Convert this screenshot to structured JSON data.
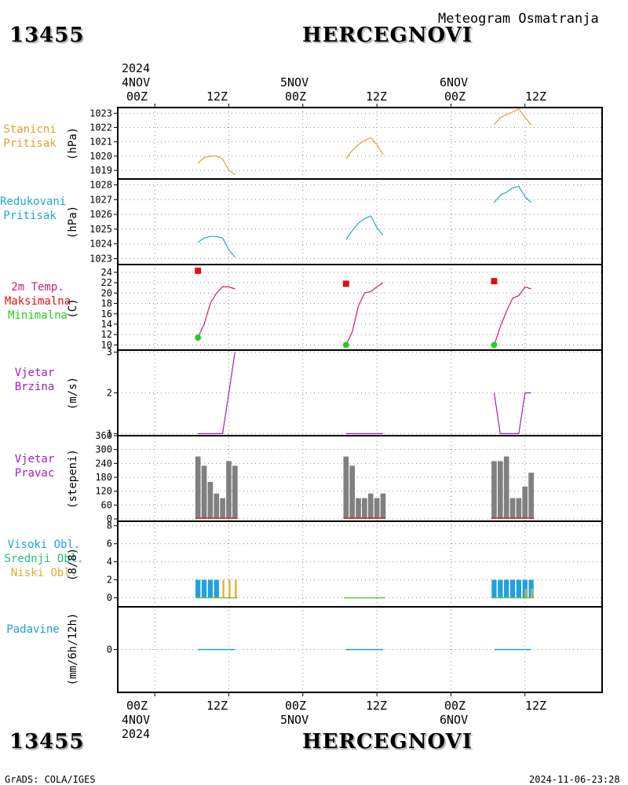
{
  "header": {
    "station_id": "13455",
    "station_name": "HERCEGNOVI",
    "subtitle": "Meteogram Osmatranja"
  },
  "footer": {
    "credit": "GrADS: COLA/IGES",
    "timestamp": "2024-11-06-23:28"
  },
  "time_axis": {
    "top_year": "2024",
    "bottom_year": "2024",
    "day_labels": [
      "4NOV",
      "5NOV",
      "6NOV"
    ],
    "tick_labels": [
      "00Z",
      "12Z",
      "00Z",
      "12Z",
      "00Z",
      "12Z"
    ]
  },
  "colors": {
    "station_pressure": "#e0a030",
    "reduced_pressure": "#20a8d0",
    "temp": "#c81e78",
    "max": "#e01010",
    "min": "#20d020",
    "wind": "#a020c0",
    "bar": "#808080",
    "high_cloud": "#20a0e0",
    "mid_cloud": "#20c080",
    "low_cloud": "#e0b030",
    "precip": "#20a0c8"
  },
  "panels": {
    "station_pressure": {
      "label_lines": [
        "Stanicni",
        "Pritisak"
      ],
      "unit": "(hPa)"
    },
    "reduced_pressure": {
      "label_lines": [
        "Redukovani",
        "Pritisak"
      ],
      "unit": "(hPa)"
    },
    "temperature": {
      "label_lines": [
        "2m Temp.",
        "Maksimalna",
        "Minimalna"
      ],
      "unit": "(C)"
    },
    "wind_speed": {
      "label_lines": [
        "Vjetar",
        "Brzina"
      ],
      "unit": "(m/s)"
    },
    "wind_dir": {
      "label_lines": [
        "Vjetar",
        "Pravac"
      ],
      "unit": "(stepeni)"
    },
    "clouds": {
      "label_lines": [
        "Visoki Obl.",
        "Srednji Obl.",
        "Niski Obl."
      ],
      "unit": "(8/8)"
    },
    "precip": {
      "label_lines": [
        "Padavine"
      ],
      "unit": "(mm/6h/12h)"
    }
  },
  "chart_data": [
    {
      "type": "line",
      "title": "Stanicni Pritisak",
      "ylabel": "(hPa)",
      "ylim": [
        1018.4,
        1023.4
      ],
      "yticks": [
        1019,
        1020,
        1021,
        1022,
        1023
      ],
      "series": [
        {
          "x": [
            7,
            8,
            9,
            10,
            11,
            12,
            13
          ],
          "y": [
            1019.5,
            1019.9,
            1020.0,
            1020.0,
            1019.8,
            1019.0,
            1018.7
          ]
        },
        {
          "x": [
            31,
            32,
            33,
            34,
            35,
            36,
            37
          ],
          "y": [
            1019.8,
            1020.4,
            1020.8,
            1021.1,
            1021.3,
            1020.8,
            1020.1
          ]
        },
        {
          "x": [
            55,
            56,
            57,
            58,
            59,
            60,
            61
          ],
          "y": [
            1022.2,
            1022.7,
            1022.9,
            1023.1,
            1023.3,
            1022.7,
            1022.2
          ]
        }
      ]
    },
    {
      "type": "line",
      "title": "Redukovani Pritisak",
      "ylabel": "(hPa)",
      "ylim": [
        1022.6,
        1028.4
      ],
      "yticks": [
        1023,
        1024,
        1025,
        1026,
        1027,
        1028
      ],
      "series": [
        {
          "x": [
            7,
            8,
            9,
            10,
            11,
            12,
            13
          ],
          "y": [
            1024.1,
            1024.4,
            1024.5,
            1024.5,
            1024.4,
            1023.6,
            1023.1
          ]
        },
        {
          "x": [
            31,
            32,
            33,
            34,
            35,
            36,
            37
          ],
          "y": [
            1024.3,
            1024.9,
            1025.4,
            1025.7,
            1025.9,
            1025.1,
            1024.6
          ]
        },
        {
          "x": [
            55,
            56,
            57,
            58,
            59,
            60,
            61
          ],
          "y": [
            1026.8,
            1027.3,
            1027.5,
            1027.8,
            1027.9,
            1027.2,
            1026.8
          ]
        }
      ]
    },
    {
      "type": "line",
      "title": "2m Temp. Maksimalna Minimalna",
      "ylabel": "(C)",
      "ylim": [
        9,
        25.5
      ],
      "yticks": [
        10,
        12,
        14,
        16,
        18,
        20,
        22,
        24
      ],
      "series": [
        {
          "name": "2m Temp.",
          "x": [
            7,
            8,
            9,
            10,
            11,
            12,
            13
          ],
          "y": [
            11.5,
            14.0,
            18.0,
            20.0,
            21.2,
            21.2,
            20.8
          ]
        },
        {
          "name": "2m Temp.",
          "x": [
            31,
            32,
            33,
            34,
            35,
            36,
            37
          ],
          "y": [
            10.0,
            12.5,
            17.5,
            20.0,
            20.3,
            21.2,
            22.0
          ]
        },
        {
          "name": "2m Temp.",
          "x": [
            55,
            56,
            57,
            58,
            59,
            60,
            61
          ],
          "y": [
            10.0,
            13.5,
            16.5,
            19.0,
            19.5,
            21.2,
            20.8
          ]
        }
      ],
      "maxima": [
        {
          "x": 7,
          "y": 24.3
        },
        {
          "x": 31,
          "y": 21.8
        },
        {
          "x": 55,
          "y": 22.3
        }
      ],
      "minima": [
        {
          "x": 7,
          "y": 11.4
        },
        {
          "x": 31,
          "y": 10.0
        },
        {
          "x": 55,
          "y": 10.0
        }
      ]
    },
    {
      "type": "line",
      "title": "Vjetar Brzina",
      "ylabel": "(m/s)",
      "ylim": [
        0.95,
        3.05
      ],
      "yticks": [
        1,
        2,
        3
      ],
      "series": [
        {
          "x": [
            7,
            8,
            9,
            10,
            11,
            12,
            13
          ],
          "y": [
            1,
            1,
            1,
            1,
            1,
            2,
            3
          ]
        },
        {
          "x": [
            31,
            32,
            33,
            34,
            35,
            36,
            37
          ],
          "y": [
            1,
            1,
            1,
            1,
            1,
            1,
            1
          ]
        },
        {
          "x": [
            55,
            56,
            57,
            58,
            59,
            60,
            61
          ],
          "y": [
            2,
            1,
            1,
            1,
            1,
            2,
            2
          ]
        }
      ]
    },
    {
      "type": "bar",
      "title": "Vjetar Pravac",
      "ylabel": "(stepeni)",
      "ylim": [
        -10,
        360
      ],
      "yticks": [
        0,
        60,
        120,
        180,
        240,
        300,
        360
      ],
      "x": [
        7,
        8,
        9,
        10,
        11,
        12,
        13,
        31,
        32,
        33,
        34,
        35,
        36,
        37,
        55,
        56,
        57,
        58,
        59,
        60,
        61
      ],
      "values": [
        270,
        230,
        160,
        110,
        90,
        250,
        230,
        270,
        230,
        90,
        90,
        110,
        90,
        110,
        250,
        250,
        270,
        90,
        90,
        140,
        200
      ]
    },
    {
      "type": "bar",
      "title": "Visoki Obl. Srednji Obl. Niski Obl.",
      "ylabel": "(8/8)",
      "ylim": [
        -1,
        8.5
      ],
      "yticks": [
        0,
        2,
        4,
        6,
        8
      ],
      "x": [
        7,
        8,
        9,
        10,
        11,
        12,
        13,
        31,
        32,
        33,
        34,
        35,
        36,
        37,
        55,
        56,
        57,
        58,
        59,
        60,
        61
      ],
      "series": [
        {
          "name": "Visoki Obl.",
          "values": [
            2,
            2,
            2,
            2,
            0,
            0,
            0,
            0,
            0,
            0,
            0,
            0,
            0,
            0,
            2,
            2,
            2,
            2,
            2,
            2,
            2
          ]
        },
        {
          "name": "Srednji Obl.",
          "values": [
            0,
            0,
            0,
            0,
            0,
            0,
            0,
            0,
            0,
            0,
            0,
            0,
            0,
            0,
            0,
            0,
            0,
            0,
            0,
            0,
            0
          ]
        },
        {
          "name": "Niski Obl.",
          "values": [
            0,
            0,
            0,
            0,
            2,
            2,
            2,
            0,
            0,
            0,
            0,
            0,
            0,
            0,
            0,
            0,
            0,
            0,
            0,
            1,
            1
          ]
        }
      ]
    },
    {
      "type": "line",
      "title": "Padavine",
      "ylabel": "(mm/6h/12h)",
      "ylim": [
        -4,
        4
      ],
      "yticks": [
        0
      ],
      "series": [
        {
          "x": [
            7,
            13
          ],
          "y": [
            0,
            0
          ]
        },
        {
          "x": [
            31,
            37
          ],
          "y": [
            0,
            0
          ]
        },
        {
          "x": [
            55,
            61
          ],
          "y": [
            0,
            0
          ]
        }
      ]
    }
  ]
}
